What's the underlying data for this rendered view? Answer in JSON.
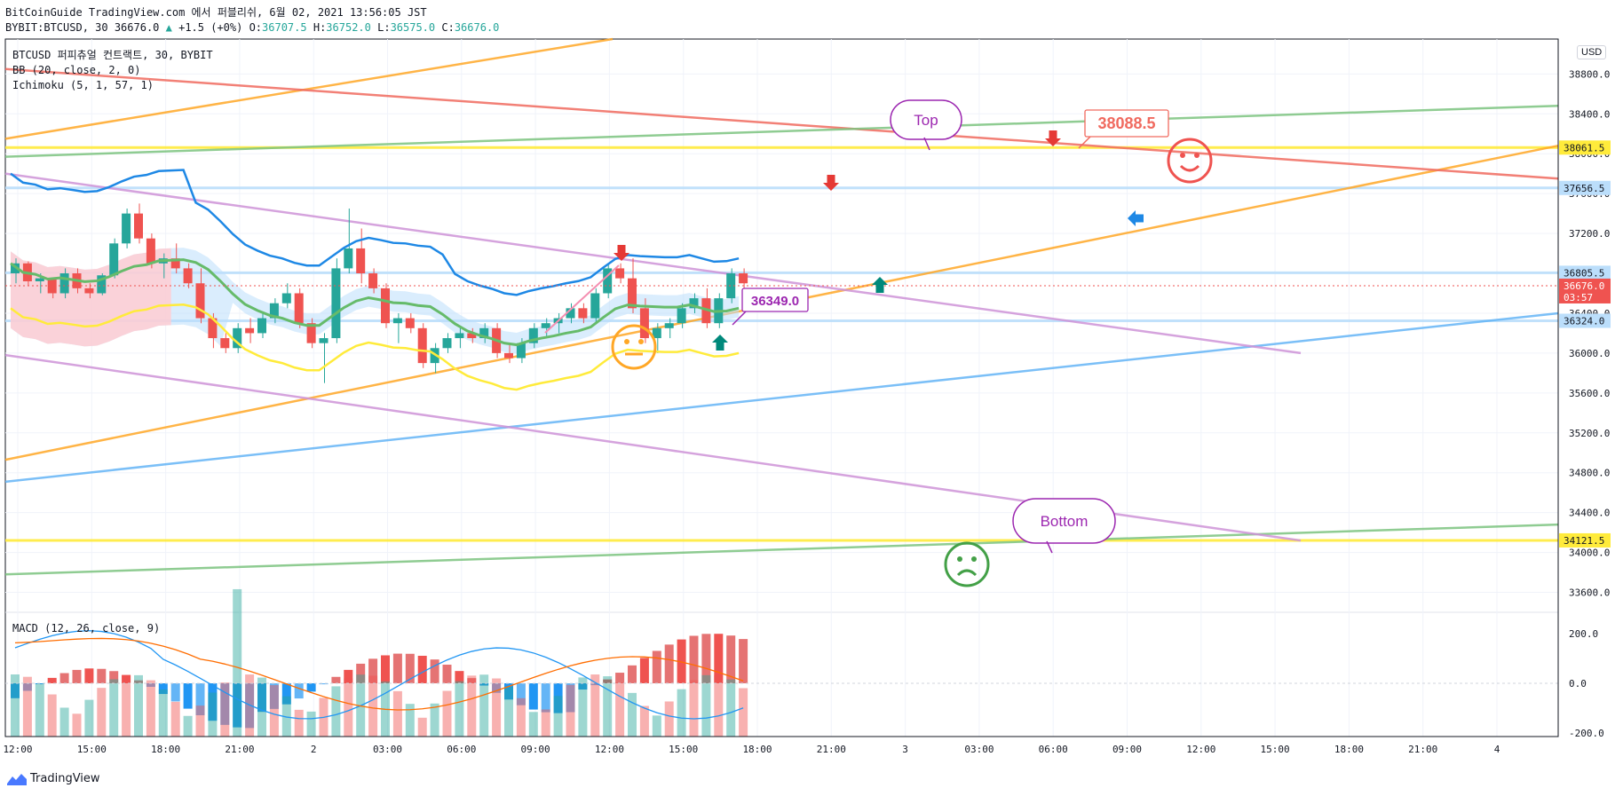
{
  "header": {
    "line1": "BitCoinGuide TradingView.com 에서 퍼블리쉬, 6월 02, 2021 13:56:05 JST",
    "symbol": "BYBIT:BTCUSD, 30 36676.0",
    "change": "+1.5 (+0%)",
    "open_label": "O:",
    "open": "36707.5",
    "high_label": "H:",
    "high": "36752.0",
    "low_label": "L:",
    "low": "36575.0",
    "close_label": "C:",
    "close": "36676.0"
  },
  "legend": {
    "title": "BTCUSD 퍼피츄얼 컨트랙트, 30, BYBIT",
    "bb": "BB (20, close, 2, 0)",
    "ichimoku": "Ichimoku (5, 1, 57, 1)",
    "macd": "MACD (12, 26, close, 9)"
  },
  "currency": "USD",
  "footer": {
    "brand": "TradingView"
  },
  "annotations": {
    "top": "Top",
    "bottom": "Bottom",
    "price1": "38088.5",
    "price2": "36349.0"
  },
  "colors": {
    "up": "#26a69a",
    "down": "#ef5350",
    "bb": "#1e88e5",
    "ichimoku_base": "#66bb6a",
    "ichimoku_lag": "#ffeb3b",
    "orange": "#ffa726",
    "red_line": "#f06a5f",
    "green_line": "#7cc47f",
    "blue_line": "#64b5f6",
    "violet": "#ce93d8"
  },
  "chart_data": [
    {
      "type": "candlestick",
      "title": "BTCUSD 퍼피츄얼 컨트랙트, 30, BYBIT",
      "x_ticks": [
        "12:00",
        "15:00",
        "18:00",
        "21:00",
        "2",
        "03:00",
        "06:00",
        "09:00",
        "12:00",
        "15:00",
        "18:00",
        "21:00",
        "3",
        "03:00",
        "06:00",
        "09:00",
        "12:00",
        "15:00",
        "18:00",
        "21:00",
        "4"
      ],
      "y_ticks": [
        38800,
        38400,
        38000,
        37600,
        37200,
        36800,
        36400,
        36000,
        35600,
        35200,
        34800,
        34400,
        34000,
        33600
      ],
      "ylim": [
        33400,
        39150
      ],
      "price_labels": [
        {
          "value": "38061.5",
          "color": "#ffeb3b"
        },
        {
          "value": "37656.5",
          "color": "#bbdefb"
        },
        {
          "value": "36805.5",
          "color": "#bbdefb"
        },
        {
          "value": "36676.0",
          "sub": "03:57",
          "color": "#ef5350"
        },
        {
          "value": "36324.0",
          "color": "#bbdefb"
        },
        {
          "value": "34121.5",
          "color": "#ffeb3b"
        }
      ],
      "horizontal_levels": [
        38061.5,
        37656.5,
        36805.5,
        36324.0,
        34121.5
      ],
      "candles": [
        [
          36800,
          36950,
          36700,
          36900
        ],
        [
          36900,
          36920,
          36680,
          36720
        ],
        [
          36720,
          36800,
          36600,
          36750
        ],
        [
          36750,
          36760,
          36550,
          36600
        ],
        [
          36600,
          36850,
          36550,
          36800
        ],
        [
          36800,
          36850,
          36600,
          36650
        ],
        [
          36650,
          36700,
          36550,
          36600
        ],
        [
          36600,
          36800,
          36580,
          36780
        ],
        [
          36780,
          37150,
          36750,
          37100
        ],
        [
          37100,
          37450,
          37050,
          37400
        ],
        [
          37400,
          37500,
          37100,
          37150
        ],
        [
          37150,
          37200,
          36850,
          36900
        ],
        [
          36900,
          37000,
          36750,
          36950
        ],
        [
          36950,
          37100,
          36800,
          36850
        ],
        [
          36850,
          36900,
          36650,
          36700
        ],
        [
          36700,
          36850,
          36300,
          36350
        ],
        [
          36350,
          36400,
          36050,
          36150
        ],
        [
          36150,
          36200,
          36000,
          36050
        ],
        [
          36050,
          36300,
          36000,
          36250
        ],
        [
          36250,
          36350,
          36100,
          36200
        ],
        [
          36200,
          36400,
          36150,
          36350
        ],
        [
          36350,
          36550,
          36300,
          36500
        ],
        [
          36500,
          36700,
          36450,
          36600
        ],
        [
          36600,
          36650,
          36250,
          36300
        ],
        [
          36300,
          36350,
          36050,
          36100
        ],
        [
          36100,
          36200,
          35700,
          36150
        ],
        [
          36150,
          36950,
          36100,
          36850
        ],
        [
          36850,
          37450,
          36800,
          37050
        ],
        [
          37050,
          37250,
          36700,
          36800
        ],
        [
          36800,
          36850,
          36600,
          36650
        ],
        [
          36650,
          36700,
          36250,
          36300
        ],
        [
          36300,
          36400,
          36100,
          36350
        ],
        [
          36350,
          36400,
          36200,
          36250
        ],
        [
          36250,
          36300,
          35850,
          35900
        ],
        [
          35900,
          36100,
          35800,
          36050
        ],
        [
          36050,
          36200,
          36000,
          36150
        ],
        [
          36150,
          36250,
          36050,
          36200
        ],
        [
          36200,
          36250,
          36100,
          36150
        ],
        [
          36150,
          36300,
          36100,
          36250
        ],
        [
          36250,
          36300,
          35950,
          36000
        ],
        [
          36000,
          36100,
          35900,
          35950
        ],
        [
          35950,
          36150,
          35900,
          36100
        ],
        [
          36100,
          36300,
          36050,
          36250
        ],
        [
          36250,
          36350,
          36150,
          36300
        ],
        [
          36300,
          36400,
          36200,
          36350
        ],
        [
          36350,
          36500,
          36300,
          36450
        ],
        [
          36450,
          36500,
          36300,
          36350
        ],
        [
          36350,
          36650,
          36300,
          36600
        ],
        [
          36600,
          36900,
          36550,
          36850
        ],
        [
          36850,
          36900,
          36700,
          36750
        ],
        [
          36750,
          36950,
          36400,
          36450
        ],
        [
          36450,
          36550,
          36100,
          36150
        ],
        [
          36150,
          36300,
          36000,
          36250
        ],
        [
          36250,
          36350,
          36150,
          36300
        ],
        [
          36300,
          36500,
          36250,
          36450
        ],
        [
          36450,
          36600,
          36400,
          36550
        ],
        [
          36550,
          36650,
          36250,
          36300
        ],
        [
          36300,
          36600,
          36250,
          36550
        ],
        [
          36550,
          36850,
          36500,
          36800
        ],
        [
          36800,
          36850,
          36650,
          36700
        ]
      ],
      "macd": {
        "title": "MACD (12, 26, close, 9)",
        "y_ticks": [
          200,
          0,
          -200
        ],
        "histogram_note": "bars around zero line"
      }
    }
  ]
}
